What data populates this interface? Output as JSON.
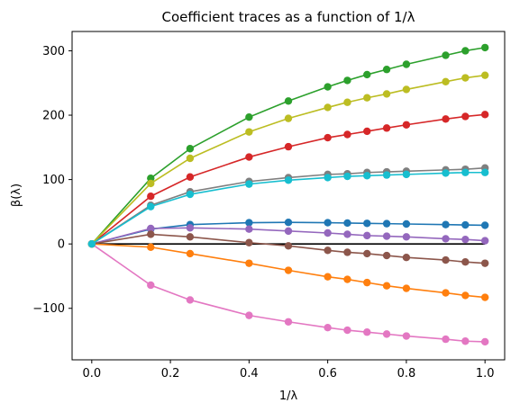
{
  "chart_data": {
    "type": "line",
    "title": "Coefficient traces as a function of 1/λ",
    "xlabel": "1/λ",
    "ylabel": "β(λ)",
    "xlim": [
      -0.05,
      1.05
    ],
    "ylim": [
      -180,
      330
    ],
    "xticks": [
      "0.0",
      "0.2",
      "0.4",
      "0.6",
      "0.8",
      "1.0"
    ],
    "yticks": [
      "−100",
      "0",
      "100",
      "200",
      "300"
    ],
    "x": [
      0.0,
      0.15,
      0.25,
      0.4,
      0.5,
      0.6,
      0.65,
      0.7,
      0.75,
      0.8,
      0.9,
      0.95,
      1.0
    ],
    "zero_line": true,
    "grid": false,
    "series": [
      {
        "color": "#1f77b4",
        "values": [
          0,
          23,
          30,
          33,
          33.5,
          33,
          32.5,
          32,
          31.5,
          31,
          30,
          29.5,
          29
        ]
      },
      {
        "color": "#ff7f0e",
        "values": [
          0,
          -5,
          -15,
          -30,
          -41,
          -51,
          -55,
          -60,
          -65,
          -69,
          -76,
          -80,
          -83
        ]
      },
      {
        "color": "#2ca02c",
        "values": [
          0,
          102,
          148,
          197,
          222,
          244,
          254,
          263,
          271,
          279,
          293,
          300,
          305
        ]
      },
      {
        "color": "#d62728",
        "values": [
          0,
          74,
          104,
          135,
          151,
          165,
          170,
          175,
          180,
          185,
          194,
          198,
          201
        ]
      },
      {
        "color": "#9467bd",
        "values": [
          0,
          24,
          25,
          23,
          20,
          17,
          15,
          13,
          12,
          11,
          8,
          7,
          5
        ]
      },
      {
        "color": "#8c564b",
        "values": [
          0,
          15,
          11,
          2,
          -3,
          -10,
          -13,
          -15,
          -18,
          -21,
          -25,
          -28,
          -30
        ]
      },
      {
        "color": "#e377c2",
        "values": [
          0,
          -64,
          -87,
          -111,
          -121,
          -130,
          -134,
          -137,
          -140,
          -143,
          -148,
          -151,
          -152
        ]
      },
      {
        "color": "#7f7f7f",
        "values": [
          0,
          60,
          81,
          97,
          103,
          108,
          109,
          111,
          112,
          113,
          115,
          116,
          118
        ]
      },
      {
        "color": "#bcbd22",
        "values": [
          0,
          94,
          133,
          174,
          195,
          212,
          220,
          227,
          233,
          240,
          252,
          258,
          262
        ]
      },
      {
        "color": "#17becf",
        "values": [
          0,
          58,
          77,
          93,
          99,
          103,
          105,
          106,
          107,
          108,
          110,
          111,
          111
        ]
      }
    ]
  }
}
